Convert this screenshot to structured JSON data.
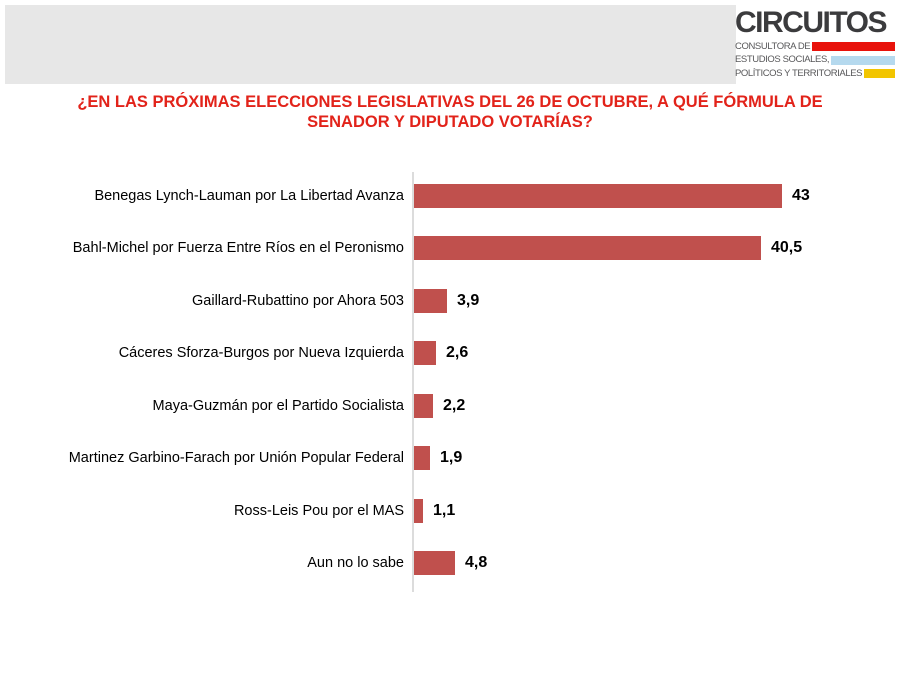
{
  "logo": {
    "brand": "CIRCUITOS",
    "tagline_lines": [
      {
        "text": "CONSULTORA DE",
        "bar_color": "#e8120b"
      },
      {
        "text": "ESTUDIOS SOCIALES,",
        "bar_color": "#b5d9ee"
      },
      {
        "text": "POLÍTICOS Y TERRITORIALES",
        "bar_color": "#f2c500"
      }
    ]
  },
  "question": {
    "lines": [
      "¿EN LAS PRÓXIMAS ELECCIONES LEGISLATIVAS DEL 26 DE OCTUBRE, A QUÉ FÓRMULA DE",
      "SENADOR Y DIPUTADO VOTARÍAS?"
    ],
    "color": "#e2231a"
  },
  "chart_data": {
    "type": "bar",
    "orientation": "horizontal",
    "title": "¿EN LAS PRÓXIMAS ELECCIONES LEGISLATIVAS DEL 26 DE OCTUBRE, A QUÉ FÓRMULA DE SENADOR Y DIPUTADO VOTARÍAS?",
    "categories": [
      "Benegas Lynch-Lauman por La Libertad Avanza",
      "Bahl-Michel por Fuerza Entre Ríos en el Peronismo",
      "Gaillard-Rubattino por Ahora 503",
      "Cáceres Sforza-Burgos por Nueva Izquierda",
      "Maya-Guzmán por el Partido Socialista",
      "Martinez Garbino-Farach por Unión Popular Federal",
      "Ross-Leis Pou por el MAS",
      "Aun no lo sabe"
    ],
    "values": [
      43,
      40.5,
      3.9,
      2.6,
      2.2,
      1.9,
      1.1,
      4.8
    ],
    "value_labels": [
      "43",
      "40,5",
      "3,9",
      "2,6",
      "2,2",
      "1,9",
      "1,1",
      "4,8"
    ],
    "bar_color": "#c0504d",
    "xlim": [
      0,
      47
    ],
    "grid": false,
    "legend": false,
    "value_labels_position": "end-of-bar"
  },
  "colors": {
    "header_band": "#e7e7e7",
    "brand_text": "#3b3b3d",
    "axis_line": "#dcdcdc"
  }
}
